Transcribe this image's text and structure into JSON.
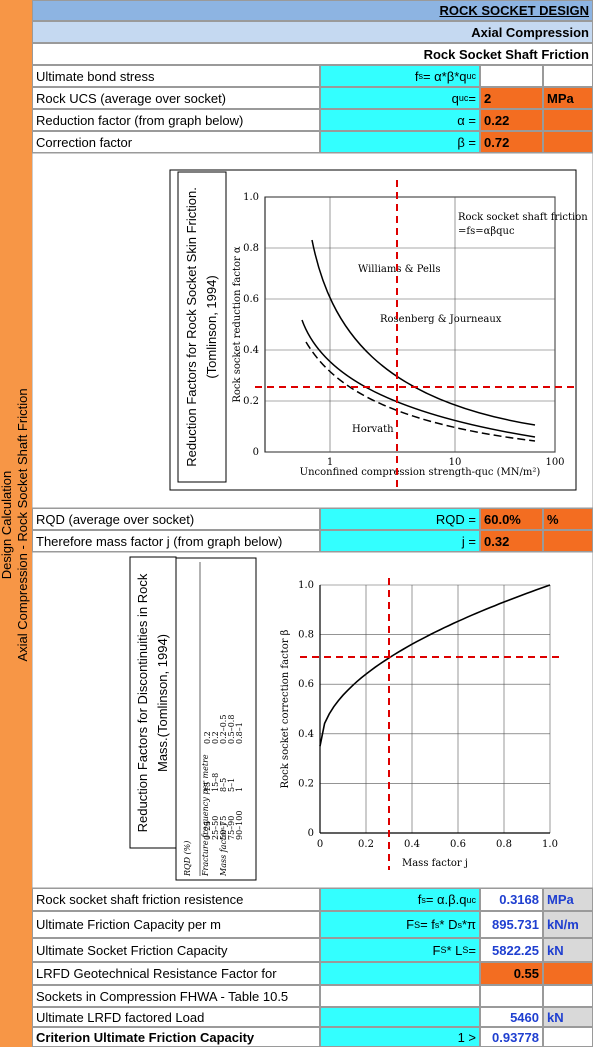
{
  "sidebar": [
    "Design Calculation",
    "Axial Compression - Rock Socket Shaft Friction"
  ],
  "header": {
    "title": "ROCK SOCKET DESIGN",
    "subtitle": "Axial Compression",
    "section": "Rock Socket Shaft Friction"
  },
  "rows": [
    {
      "label": "Ultimate bond stress",
      "formula": [
        "f",
        "s",
        " = α*β*q",
        "uc"
      ]
    },
    {
      "label": "Rock UCS (average over socket)",
      "formula": [
        "q",
        "uc",
        " ="
      ],
      "value": "2",
      "unit": "MPa"
    },
    {
      "label": "Reduction factor (from graph below)",
      "formula": [
        "α ="
      ],
      "value": "0.22"
    },
    {
      "label": "Correction factor",
      "formula": [
        "β ="
      ],
      "value": "0.72"
    },
    {
      "label": "RQD (average over socket)",
      "formula": [
        "RQD ="
      ],
      "value": "60.0%",
      "unit": "%"
    },
    {
      "label": "Therefore mass factor j (from graph below)",
      "formula": [
        "j ="
      ],
      "value": "0.32"
    },
    {
      "label": "Rock socket shaft friction resistence",
      "formula": [
        "f",
        "s",
        " = α.β.q",
        "uc"
      ],
      "value": "0.3168",
      "unit": "MPa"
    },
    {
      "label": "Ultimate Friction Capacity per m",
      "formula": [
        "F",
        "S",
        " = f",
        "s",
        " * D",
        "s",
        "*π"
      ],
      "value": "895.731",
      "unit": "kN/m"
    },
    {
      "label": "Ultimate Socket Friction  Capacity",
      "formula": [
        "F",
        "S",
        " * L",
        "S",
        " ="
      ],
      "value": "5822.25",
      "unit": "kN"
    },
    {
      "label": "LRFD Geotechnical Resistance Factor for",
      "value": "0.55"
    },
    {
      "label": "Sockets in Compression FHWA - Table 10.5"
    },
    {
      "label": "Ultimate LRFD factored Load",
      "value": "5460",
      "unit": "kN"
    },
    {
      "label": "Criterion Ultimate Friction Capacity",
      "formula": [
        "1 >"
      ],
      "value": "0.93778"
    }
  ],
  "figure1": {
    "caption": [
      "Reduction Factors for Rock Socket Skin Friction.",
      "(Tomlinson, 1994)"
    ],
    "ylabel": "Rock socket reduction factor α",
    "xlabel": "Unconfined compression strength-quc (MN/m²)",
    "yticks": [
      "0",
      "0.2",
      "0.4",
      "0.6",
      "0.8",
      "1.0"
    ],
    "xticks": [
      "1",
      "10",
      "100"
    ],
    "annotation": [
      "Rock socket shaft friction",
      "=fs=αβquc"
    ],
    "curves": [
      "Williams & Pells",
      "Rosenberg & Journeaux",
      "Horvath"
    ]
  },
  "figure2": {
    "caption": [
      "Reduction Factors for Discontinuities in Rock",
      "Mass.(Tomlinson, 1994)"
    ],
    "ylabel": "Rock socket correction factor β",
    "xlabel": "Mass factor j",
    "yticks": [
      "0",
      "0.2",
      "0.4",
      "0.6",
      "0.8",
      "1.0"
    ],
    "xticks": [
      "0",
      "0.2",
      "0.4",
      "0.6",
      "0.8",
      "1.0"
    ],
    "table": {
      "headers": [
        "RQD (%)",
        "Fracture frequency per metre",
        "Mass factor j"
      ],
      "columns": [
        [
          "0–25",
          "25–50",
          "50–75",
          "75–90",
          "90–100"
        ],
        [
          "15",
          "15–8",
          "8–5",
          "5–1",
          "1"
        ],
        [
          "0.2",
          "0.2",
          "0.2–0.5",
          "0.5–0.8",
          "0.8–1"
        ]
      ]
    }
  }
}
